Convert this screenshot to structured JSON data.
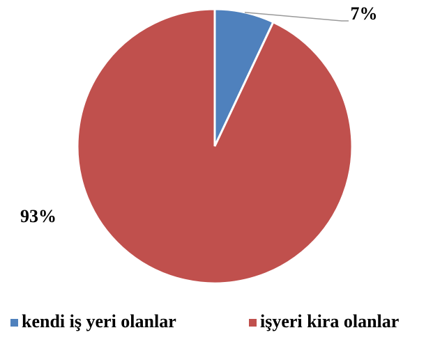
{
  "chart_data": {
    "type": "pie",
    "categories": [
      "kendi iş yeri olanlar",
      "işyeri kira olanlar"
    ],
    "values": [
      7,
      93
    ],
    "value_labels": [
      "7%",
      "93%"
    ],
    "colors": [
      "#4f81bd",
      "#c0504d"
    ],
    "legend": "bottom"
  }
}
